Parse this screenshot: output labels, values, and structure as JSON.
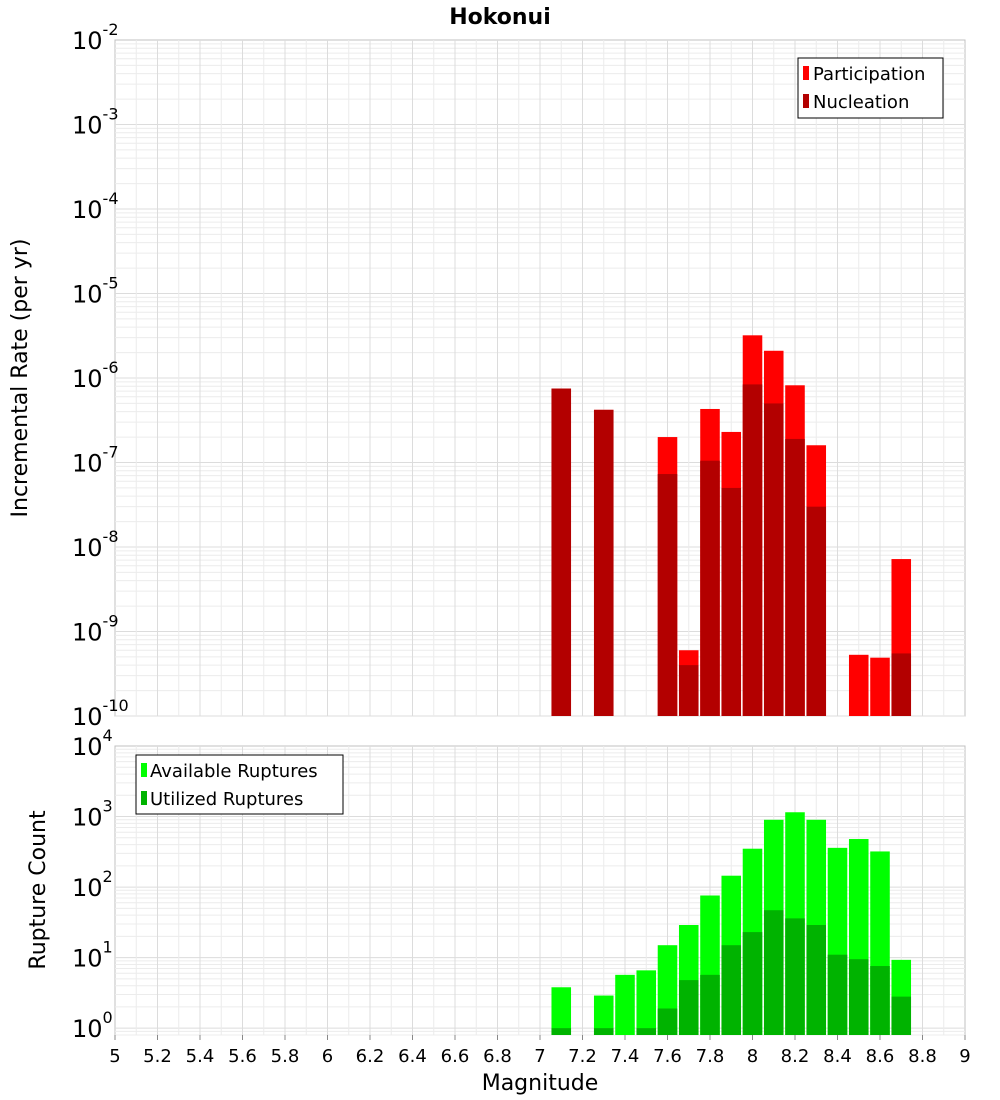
{
  "chart_data": [
    {
      "type": "bar",
      "title": "Hokonui",
      "ylabel": "Incremental Rate (per yr)",
      "xlabel": "",
      "yscale": "log",
      "ylim": [
        1e-10,
        0.01
      ],
      "xlim": [
        5,
        9
      ],
      "grid": true,
      "legend_position": "top-right",
      "y_ticks": [
        {
          "base": "10",
          "exp": "-10"
        },
        {
          "base": "10",
          "exp": "-9"
        },
        {
          "base": "10",
          "exp": "-8"
        },
        {
          "base": "10",
          "exp": "-7"
        },
        {
          "base": "10",
          "exp": "-6"
        },
        {
          "base": "10",
          "exp": "-5"
        },
        {
          "base": "10",
          "exp": "-4"
        },
        {
          "base": "10",
          "exp": "-3"
        },
        {
          "base": "10",
          "exp": "-2"
        }
      ],
      "x": [
        7.1,
        7.3,
        7.5,
        7.6,
        7.7,
        7.8,
        7.9,
        8.0,
        8.1,
        8.2,
        8.3,
        8.4,
        8.5,
        8.6,
        8.7
      ],
      "series": [
        {
          "name": "Participation",
          "color": "#ff0000",
          "values": [
            7.5e-07,
            4.2e-07,
            null,
            2e-07,
            6e-10,
            4.3e-07,
            2.3e-07,
            3.2e-06,
            2.1e-06,
            8.2e-07,
            1.6e-07,
            null,
            5.3e-10,
            4.9e-10,
            7.2e-09
          ]
        },
        {
          "name": "Nucleation",
          "color": "#b30000",
          "values": [
            7.5e-07,
            4.2e-07,
            null,
            7.3e-08,
            4e-10,
            1.05e-07,
            5e-08,
            8.4e-07,
            5e-07,
            1.9e-07,
            3e-08,
            null,
            null,
            null,
            5.5e-10
          ]
        }
      ]
    },
    {
      "type": "bar",
      "title": "",
      "ylabel": "Rupture Count",
      "xlabel": "Magnitude",
      "yscale": "log",
      "ylim": [
        0.8,
        10000
      ],
      "xlim": [
        5,
        9
      ],
      "grid": true,
      "legend_position": "top-left",
      "x_ticks": [
        "5",
        "5.2",
        "5.4",
        "5.6",
        "5.8",
        "6",
        "6.2",
        "6.4",
        "6.6",
        "6.8",
        "7",
        "7.2",
        "7.4",
        "7.6",
        "7.8",
        "8",
        "8.2",
        "8.4",
        "8.6",
        "8.8",
        "9"
      ],
      "y_ticks": [
        {
          "base": "10",
          "exp": "0"
        },
        {
          "base": "10",
          "exp": "1"
        },
        {
          "base": "10",
          "exp": "2"
        },
        {
          "base": "10",
          "exp": "3"
        },
        {
          "base": "10",
          "exp": "4"
        }
      ],
      "x": [
        7.1,
        7.3,
        7.4,
        7.5,
        7.6,
        7.7,
        7.8,
        7.9,
        8.0,
        8.1,
        8.2,
        8.3,
        8.4,
        8.5,
        8.6,
        8.7
      ],
      "series": [
        {
          "name": "Available Ruptures",
          "color": "#00ff00",
          "values": [
            3.8,
            2.9,
            5.7,
            6.6,
            15,
            29,
            76,
            145,
            350,
            900,
            1150,
            900,
            360,
            480,
            320,
            9.3
          ]
        },
        {
          "name": "Utilized Ruptures",
          "color": "#00b300",
          "values": [
            1,
            1,
            null,
            1,
            1.9,
            4.8,
            5.7,
            15,
            23,
            47,
            36,
            29,
            11,
            9.5,
            7.6,
            2.8
          ]
        }
      ]
    }
  ]
}
